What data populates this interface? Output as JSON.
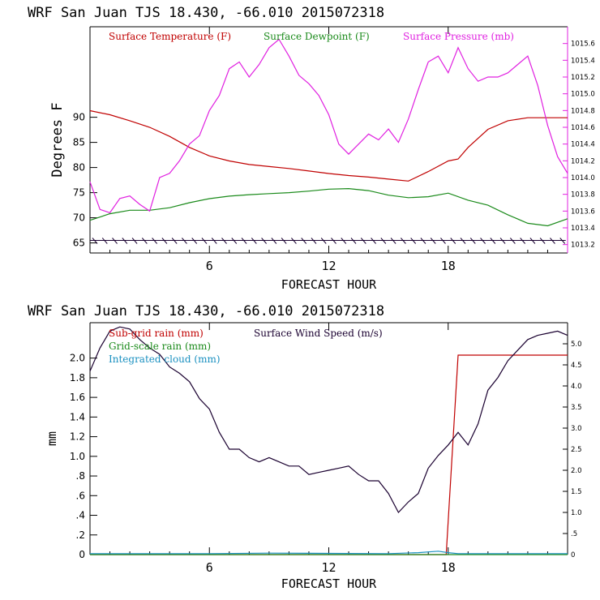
{
  "chart_data": [
    {
      "type": "line",
      "title": "WRF   San Juan TJS  18.430, -66.010  2015072318",
      "xlabel": "FORECAST HOUR",
      "ylabel": "Degrees F",
      "xlim": [
        0,
        24
      ],
      "ylim": [
        63,
        108
      ],
      "ylim_right": [
        1013.1,
        1015.8
      ],
      "x_ticks": [
        6,
        12,
        18
      ],
      "y_ticks": [
        65,
        70,
        75,
        80,
        85,
        90
      ],
      "y_right_ticks": [
        "1013.2",
        "1013.4",
        "1013.6",
        "1013.8",
        "1014.0",
        "1014.2",
        "1014.4",
        "1014.6",
        "1014.8",
        "1015.0",
        "1015.2",
        "1015.4",
        "1015.6"
      ],
      "legend_placement": "top",
      "colors": {
        "temperature": "#c00000",
        "dewpoint": "#1a8a1a",
        "pressure": "#e020e0",
        "wind": "#1a0030",
        "axes": "#000000",
        "right_axis": "#e020e0"
      },
      "series": [
        {
          "name": "Surface Temperature (F)",
          "axis": "left",
          "color": "#c00000",
          "x": [
            0,
            1,
            2,
            3,
            4,
            5,
            6,
            7,
            8,
            9,
            10,
            11,
            12,
            13,
            14,
            15,
            16,
            17,
            18,
            18.5,
            19,
            20,
            21,
            22,
            23,
            24
          ],
          "y": [
            91.3,
            90.5,
            89.3,
            88.0,
            86.2,
            84.0,
            82.3,
            81.3,
            80.6,
            80.2,
            79.8,
            79.3,
            78.8,
            78.4,
            78.1,
            77.7,
            77.3,
            79.2,
            81.3,
            81.7,
            84.0,
            87.6,
            89.3,
            89.9,
            89.9,
            89.9
          ]
        },
        {
          "name": "Surface Dewpoint (F)",
          "axis": "left",
          "color": "#1a8a1a",
          "x": [
            0,
            1,
            2,
            3,
            4,
            5,
            6,
            7,
            8,
            9,
            10,
            11,
            12,
            13,
            14,
            15,
            16,
            17,
            18,
            19,
            20,
            21,
            22,
            23,
            24
          ],
          "y": [
            69.5,
            70.8,
            71.5,
            71.5,
            72.0,
            73.0,
            73.8,
            74.3,
            74.6,
            74.8,
            75.0,
            75.3,
            75.7,
            75.8,
            75.4,
            74.5,
            74.0,
            74.2,
            74.9,
            73.5,
            72.5,
            70.6,
            68.9,
            68.4,
            69.8
          ]
        },
        {
          "name": "Surface Pressure (mb)",
          "axis": "right",
          "color": "#e020e0",
          "x": [
            0,
            0.5,
            1,
            1.5,
            2,
            2.5,
            3,
            3.5,
            4,
            4.5,
            5,
            5.5,
            6,
            6.5,
            7,
            7.5,
            8,
            8.5,
            9,
            9.5,
            10,
            10.5,
            11,
            11.5,
            12,
            12.5,
            13,
            13.5,
            14,
            14.5,
            15,
            15.5,
            16,
            16.5,
            17,
            17.5,
            18,
            18.5,
            19,
            19.5,
            20,
            20.5,
            21,
            21.5,
            22,
            22.5,
            23,
            23.5,
            24
          ],
          "y": [
            1013.95,
            1013.62,
            1013.58,
            1013.75,
            1013.78,
            1013.68,
            1013.6,
            1014.0,
            1014.05,
            1014.2,
            1014.4,
            1014.5,
            1014.8,
            1014.98,
            1015.3,
            1015.38,
            1015.2,
            1015.35,
            1015.55,
            1015.65,
            1015.45,
            1015.22,
            1015.12,
            1014.98,
            1014.75,
            1014.4,
            1014.28,
            1014.4,
            1014.52,
            1014.45,
            1014.58,
            1014.42,
            1014.7,
            1015.05,
            1015.38,
            1015.45,
            1015.25,
            1015.55,
            1015.3,
            1015.15,
            1015.2,
            1015.2,
            1015.25,
            1015.35,
            1015.45,
            1015.1,
            1014.62,
            1014.25,
            1014.05
          ]
        }
      ],
      "wind_barbs": {
        "y": 65.5,
        "color": "#1a0030",
        "hours": [
          0,
          0.5,
          1,
          1.5,
          2,
          2.5,
          3,
          3.5,
          4,
          4.5,
          5,
          5.5,
          6,
          6.5,
          7,
          7.5,
          8,
          8.5,
          9,
          9.5,
          10,
          10.5,
          11,
          11.5,
          12,
          12.5,
          13,
          13.5,
          14,
          14.5,
          15,
          15.5,
          16,
          16.5,
          17,
          17.5,
          18,
          18.5,
          19,
          19.5,
          20,
          20.5,
          21,
          21.5,
          22,
          22.5,
          23,
          23.5
        ]
      }
    },
    {
      "type": "line",
      "title": "WRF   San Juan TJS  18.430, -66.010  2015072318",
      "xlabel": "FORECAST HOUR",
      "ylabel": "mm",
      "xlim": [
        0,
        24
      ],
      "ylim": [
        0,
        2.36
      ],
      "ylim_right": [
        0,
        5.5
      ],
      "x_ticks": [
        6,
        12,
        18
      ],
      "y_ticks": [
        "0",
        ".2",
        ".4",
        ".6",
        ".8",
        "1.0",
        "1.2",
        "1.4",
        "1.6",
        "1.8",
        "2.0"
      ],
      "y_right_ticks": [
        "0",
        ".5",
        "1.0",
        "1.5",
        "2.0",
        "2.5",
        "3.0",
        "3.5",
        "4.0",
        "4.5",
        "5.0"
      ],
      "legend_placement": "top-left",
      "colors": {
        "subgrid": "#c00000",
        "gridscale": "#1a8a1a",
        "cloud": "#1a90c0",
        "wind": "#1a0030"
      },
      "series": [
        {
          "name": "Sub-grid rain (mm)",
          "axis": "left",
          "color": "#c00000",
          "x": [
            0,
            17.9,
            18.5,
            24
          ],
          "y": [
            0,
            0,
            2.03,
            2.03
          ]
        },
        {
          "name": "Surface Wind Speed (m/s)",
          "axis": "right",
          "color": "#1a0030",
          "x": [
            0,
            0.5,
            1,
            1.5,
            2,
            2.5,
            3,
            3.5,
            4,
            4.5,
            5,
            5.5,
            6,
            6.5,
            7,
            7.5,
            8,
            8.5,
            9,
            9.5,
            10,
            10.5,
            11,
            11.5,
            12,
            12.5,
            13,
            13.5,
            14,
            14.5,
            15,
            15.5,
            16,
            16.5,
            17,
            17.5,
            18,
            18.5,
            19,
            19.5,
            20,
            20.5,
            21,
            21.5,
            22,
            22.5,
            23,
            23.5,
            24
          ],
          "y": [
            4.35,
            4.9,
            5.3,
            5.4,
            5.35,
            5.1,
            4.9,
            4.75,
            4.45,
            4.3,
            4.1,
            3.7,
            3.45,
            2.9,
            2.5,
            2.5,
            2.3,
            2.2,
            2.3,
            2.2,
            2.1,
            2.1,
            1.9,
            1.95,
            2.0,
            2.05,
            2.1,
            1.9,
            1.75,
            1.75,
            1.45,
            1.0,
            1.25,
            1.45,
            2.05,
            2.35,
            2.6,
            2.9,
            2.6,
            3.1,
            3.9,
            4.2,
            4.6,
            4.85,
            5.1,
            5.2,
            5.25,
            5.3,
            5.2
          ]
        },
        {
          "name": "Grid-scale rain (mm)",
          "axis": "left",
          "color": "#1a8a1a",
          "x": [
            0,
            24
          ],
          "y": [
            0,
            0
          ]
        },
        {
          "name": "Integrated cloud (mm)",
          "axis": "left",
          "color": "#1a90c0",
          "x": [
            0,
            3,
            6,
            9,
            12,
            15,
            16.5,
            17.5,
            18,
            18.5,
            20,
            24
          ],
          "y": [
            0.01,
            0.01,
            0.01,
            0.015,
            0.012,
            0.01,
            0.02,
            0.035,
            0.02,
            0.01,
            0.01,
            0.01
          ]
        }
      ]
    }
  ]
}
